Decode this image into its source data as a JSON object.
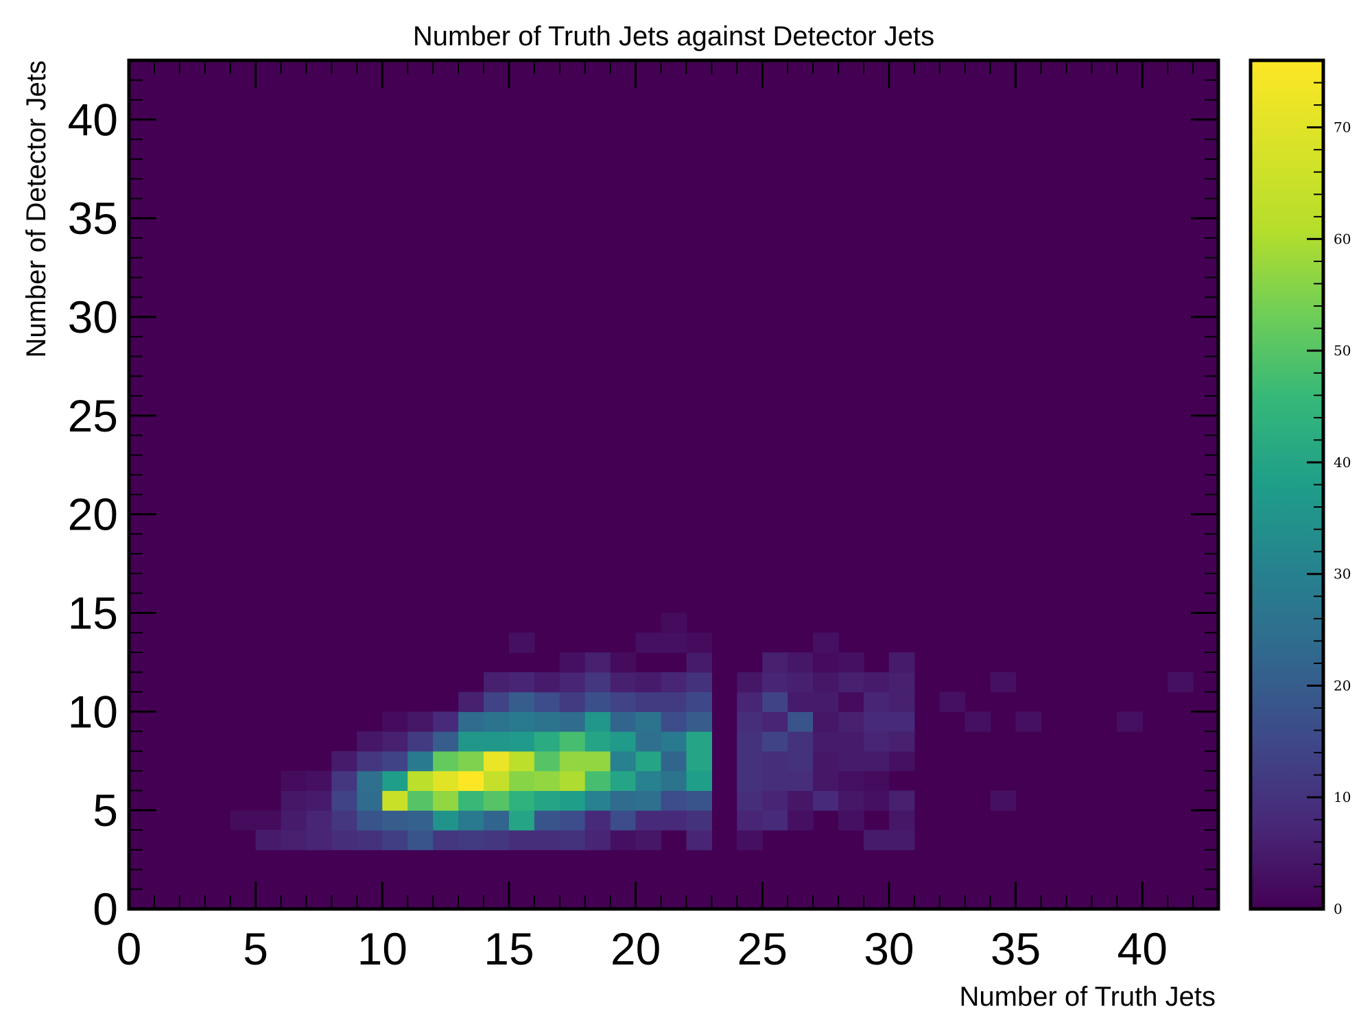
{
  "chart_data": {
    "type": "heatmap",
    "title": "Number of Truth Jets against Detector Jets",
    "xlabel": "Number of Truth Jets",
    "ylabel": "Number of Detector Jets",
    "xlim": [
      0,
      43
    ],
    "ylim": [
      0,
      43
    ],
    "xticks": [
      "0",
      "5",
      "10",
      "15",
      "20",
      "25",
      "30",
      "35",
      "40"
    ],
    "yticks": [
      "0",
      "5",
      "10",
      "15",
      "20",
      "25",
      "30",
      "35",
      "40"
    ],
    "colorbar": {
      "colormap": "viridis",
      "range": [
        0,
        76
      ],
      "ticks": [
        "0",
        "10",
        "20",
        "30",
        "40",
        "50",
        "60",
        "70"
      ]
    },
    "background_value": 0,
    "bin_size": 1,
    "colors": {
      "c0": "#440154",
      "c10": "#482878",
      "c20": "#3e4989",
      "c30": "#31688e",
      "c40": "#26828e",
      "c50": "#1f9e89",
      "c60": "#35b779",
      "c70": "#6ece58",
      "c80": "#b5de2b",
      "c100": "#fde725"
    },
    "cells": [
      {
        "x": 4,
        "y": 4,
        "v": 2
      },
      {
        "x": 5,
        "y": 4,
        "v": 2
      },
      {
        "x": 5,
        "y": 3,
        "v": 5
      },
      {
        "x": 6,
        "y": 3,
        "v": 6
      },
      {
        "x": 6,
        "y": 4,
        "v": 5
      },
      {
        "x": 6,
        "y": 5,
        "v": 4
      },
      {
        "x": 6,
        "y": 6,
        "v": 2
      },
      {
        "x": 7,
        "y": 3,
        "v": 7
      },
      {
        "x": 7,
        "y": 4,
        "v": 7
      },
      {
        "x": 7,
        "y": 5,
        "v": 5
      },
      {
        "x": 7,
        "y": 6,
        "v": 3
      },
      {
        "x": 8,
        "y": 3,
        "v": 9
      },
      {
        "x": 8,
        "y": 4,
        "v": 11
      },
      {
        "x": 8,
        "y": 5,
        "v": 14
      },
      {
        "x": 8,
        "y": 6,
        "v": 11
      },
      {
        "x": 8,
        "y": 7,
        "v": 5
      },
      {
        "x": 9,
        "y": 3,
        "v": 10
      },
      {
        "x": 9,
        "y": 4,
        "v": 18
      },
      {
        "x": 9,
        "y": 5,
        "v": 24
      },
      {
        "x": 9,
        "y": 6,
        "v": 25
      },
      {
        "x": 9,
        "y": 7,
        "v": 11
      },
      {
        "x": 9,
        "y": 8,
        "v": 4
      },
      {
        "x": 10,
        "y": 3,
        "v": 13
      },
      {
        "x": 10,
        "y": 4,
        "v": 20
      },
      {
        "x": 10,
        "y": 5,
        "v": 65
      },
      {
        "x": 10,
        "y": 6,
        "v": 38
      },
      {
        "x": 10,
        "y": 7,
        "v": 14
      },
      {
        "x": 10,
        "y": 8,
        "v": 6
      },
      {
        "x": 10,
        "y": 9,
        "v": 2
      },
      {
        "x": 11,
        "y": 3,
        "v": 18
      },
      {
        "x": 11,
        "y": 4,
        "v": 21
      },
      {
        "x": 11,
        "y": 5,
        "v": 50
      },
      {
        "x": 11,
        "y": 6,
        "v": 62
      },
      {
        "x": 11,
        "y": 7,
        "v": 28
      },
      {
        "x": 11,
        "y": 8,
        "v": 12
      },
      {
        "x": 11,
        "y": 9,
        "v": 4
      },
      {
        "x": 12,
        "y": 3,
        "v": 11
      },
      {
        "x": 12,
        "y": 4,
        "v": 35
      },
      {
        "x": 12,
        "y": 5,
        "v": 57
      },
      {
        "x": 12,
        "y": 6,
        "v": 70
      },
      {
        "x": 12,
        "y": 7,
        "v": 52
      },
      {
        "x": 12,
        "y": 8,
        "v": 20
      },
      {
        "x": 12,
        "y": 9,
        "v": 8
      },
      {
        "x": 13,
        "y": 3,
        "v": 12
      },
      {
        "x": 13,
        "y": 4,
        "v": 28
      },
      {
        "x": 13,
        "y": 5,
        "v": 46
      },
      {
        "x": 13,
        "y": 6,
        "v": 76
      },
      {
        "x": 13,
        "y": 7,
        "v": 55
      },
      {
        "x": 13,
        "y": 8,
        "v": 36
      },
      {
        "x": 13,
        "y": 9,
        "v": 24
      },
      {
        "x": 13,
        "y": 10,
        "v": 6
      },
      {
        "x": 14,
        "y": 3,
        "v": 11
      },
      {
        "x": 14,
        "y": 4,
        "v": 22
      },
      {
        "x": 14,
        "y": 5,
        "v": 50
      },
      {
        "x": 14,
        "y": 6,
        "v": 64
      },
      {
        "x": 14,
        "y": 7,
        "v": 72
      },
      {
        "x": 14,
        "y": 8,
        "v": 36
      },
      {
        "x": 14,
        "y": 9,
        "v": 26
      },
      {
        "x": 14,
        "y": 10,
        "v": 14
      },
      {
        "x": 14,
        "y": 11,
        "v": 6
      },
      {
        "x": 15,
        "y": 3,
        "v": 9
      },
      {
        "x": 15,
        "y": 4,
        "v": 40
      },
      {
        "x": 15,
        "y": 5,
        "v": 44
      },
      {
        "x": 15,
        "y": 6,
        "v": 56
      },
      {
        "x": 15,
        "y": 7,
        "v": 62
      },
      {
        "x": 15,
        "y": 8,
        "v": 37
      },
      {
        "x": 15,
        "y": 9,
        "v": 28
      },
      {
        "x": 15,
        "y": 10,
        "v": 20
      },
      {
        "x": 15,
        "y": 11,
        "v": 7
      },
      {
        "x": 15,
        "y": 13,
        "v": 3
      },
      {
        "x": 16,
        "y": 3,
        "v": 9
      },
      {
        "x": 16,
        "y": 4,
        "v": 18
      },
      {
        "x": 16,
        "y": 5,
        "v": 40
      },
      {
        "x": 16,
        "y": 6,
        "v": 57
      },
      {
        "x": 16,
        "y": 7,
        "v": 50
      },
      {
        "x": 16,
        "y": 8,
        "v": 42
      },
      {
        "x": 16,
        "y": 9,
        "v": 26
      },
      {
        "x": 16,
        "y": 10,
        "v": 16
      },
      {
        "x": 16,
        "y": 11,
        "v": 5
      },
      {
        "x": 17,
        "y": 3,
        "v": 10
      },
      {
        "x": 17,
        "y": 4,
        "v": 16
      },
      {
        "x": 17,
        "y": 5,
        "v": 38
      },
      {
        "x": 17,
        "y": 6,
        "v": 60
      },
      {
        "x": 17,
        "y": 7,
        "v": 57
      },
      {
        "x": 17,
        "y": 8,
        "v": 48
      },
      {
        "x": 17,
        "y": 9,
        "v": 24
      },
      {
        "x": 17,
        "y": 10,
        "v": 12
      },
      {
        "x": 17,
        "y": 11,
        "v": 7
      },
      {
        "x": 17,
        "y": 12,
        "v": 3
      },
      {
        "x": 18,
        "y": 3,
        "v": 7
      },
      {
        "x": 18,
        "y": 4,
        "v": 8
      },
      {
        "x": 18,
        "y": 5,
        "v": 30
      },
      {
        "x": 18,
        "y": 6,
        "v": 48
      },
      {
        "x": 18,
        "y": 7,
        "v": 57
      },
      {
        "x": 18,
        "y": 8,
        "v": 40
      },
      {
        "x": 18,
        "y": 9,
        "v": 36
      },
      {
        "x": 18,
        "y": 10,
        "v": 17
      },
      {
        "x": 18,
        "y": 11,
        "v": 11
      },
      {
        "x": 18,
        "y": 12,
        "v": 6
      },
      {
        "x": 19,
        "y": 3,
        "v": 3
      },
      {
        "x": 19,
        "y": 4,
        "v": 16
      },
      {
        "x": 19,
        "y": 5,
        "v": 24
      },
      {
        "x": 19,
        "y": 6,
        "v": 40
      },
      {
        "x": 19,
        "y": 7,
        "v": 30
      },
      {
        "x": 19,
        "y": 8,
        "v": 37
      },
      {
        "x": 19,
        "y": 9,
        "v": 22
      },
      {
        "x": 19,
        "y": 10,
        "v": 14
      },
      {
        "x": 19,
        "y": 11,
        "v": 6
      },
      {
        "x": 19,
        "y": 12,
        "v": 2
      },
      {
        "x": 20,
        "y": 3,
        "v": 4
      },
      {
        "x": 20,
        "y": 4,
        "v": 8
      },
      {
        "x": 20,
        "y": 5,
        "v": 25
      },
      {
        "x": 20,
        "y": 6,
        "v": 30
      },
      {
        "x": 20,
        "y": 7,
        "v": 40
      },
      {
        "x": 20,
        "y": 8,
        "v": 25
      },
      {
        "x": 20,
        "y": 9,
        "v": 26
      },
      {
        "x": 20,
        "y": 10,
        "v": 12
      },
      {
        "x": 20,
        "y": 11,
        "v": 5
      },
      {
        "x": 20,
        "y": 13,
        "v": 3
      },
      {
        "x": 21,
        "y": 4,
        "v": 8
      },
      {
        "x": 21,
        "y": 5,
        "v": 16
      },
      {
        "x": 21,
        "y": 6,
        "v": 26
      },
      {
        "x": 21,
        "y": 7,
        "v": 22
      },
      {
        "x": 21,
        "y": 8,
        "v": 28
      },
      {
        "x": 21,
        "y": 9,
        "v": 16
      },
      {
        "x": 21,
        "y": 10,
        "v": 12
      },
      {
        "x": 21,
        "y": 11,
        "v": 7
      },
      {
        "x": 21,
        "y": 13,
        "v": 3
      },
      {
        "x": 21,
        "y": 14,
        "v": 2
      },
      {
        "x": 22,
        "y": 3,
        "v": 7
      },
      {
        "x": 22,
        "y": 4,
        "v": 10
      },
      {
        "x": 22,
        "y": 5,
        "v": 18
      },
      {
        "x": 22,
        "y": 6,
        "v": 38
      },
      {
        "x": 22,
        "y": 7,
        "v": 40
      },
      {
        "x": 22,
        "y": 8,
        "v": 40
      },
      {
        "x": 22,
        "y": 9,
        "v": 20
      },
      {
        "x": 22,
        "y": 10,
        "v": 15
      },
      {
        "x": 22,
        "y": 11,
        "v": 10
      },
      {
        "x": 22,
        "y": 12,
        "v": 5
      },
      {
        "x": 22,
        "y": 13,
        "v": 2
      },
      {
        "x": 24,
        "y": 3,
        "v": 3
      },
      {
        "x": 24,
        "y": 4,
        "v": 7
      },
      {
        "x": 24,
        "y": 5,
        "v": 9
      },
      {
        "x": 24,
        "y": 6,
        "v": 10
      },
      {
        "x": 24,
        "y": 7,
        "v": 10
      },
      {
        "x": 24,
        "y": 8,
        "v": 10
      },
      {
        "x": 24,
        "y": 9,
        "v": 9
      },
      {
        "x": 24,
        "y": 10,
        "v": 7
      },
      {
        "x": 24,
        "y": 11,
        "v": 4
      },
      {
        "x": 25,
        "y": 4,
        "v": 8
      },
      {
        "x": 25,
        "y": 5,
        "v": 7
      },
      {
        "x": 25,
        "y": 6,
        "v": 9
      },
      {
        "x": 25,
        "y": 7,
        "v": 9
      },
      {
        "x": 25,
        "y": 8,
        "v": 14
      },
      {
        "x": 25,
        "y": 9,
        "v": 7
      },
      {
        "x": 25,
        "y": 10,
        "v": 14
      },
      {
        "x": 25,
        "y": 11,
        "v": 7
      },
      {
        "x": 25,
        "y": 12,
        "v": 6
      },
      {
        "x": 26,
        "y": 4,
        "v": 3
      },
      {
        "x": 26,
        "y": 5,
        "v": 4
      },
      {
        "x": 26,
        "y": 6,
        "v": 9
      },
      {
        "x": 26,
        "y": 7,
        "v": 10
      },
      {
        "x": 26,
        "y": 8,
        "v": 10
      },
      {
        "x": 26,
        "y": 9,
        "v": 18
      },
      {
        "x": 26,
        "y": 10,
        "v": 5
      },
      {
        "x": 26,
        "y": 11,
        "v": 6
      },
      {
        "x": 26,
        "y": 12,
        "v": 4
      },
      {
        "x": 27,
        "y": 5,
        "v": 8
      },
      {
        "x": 27,
        "y": 6,
        "v": 4
      },
      {
        "x": 27,
        "y": 7,
        "v": 4
      },
      {
        "x": 27,
        "y": 8,
        "v": 5
      },
      {
        "x": 27,
        "y": 9,
        "v": 4
      },
      {
        "x": 27,
        "y": 10,
        "v": 5
      },
      {
        "x": 27,
        "y": 11,
        "v": 4
      },
      {
        "x": 27,
        "y": 12,
        "v": 2
      },
      {
        "x": 27,
        "y": 13,
        "v": 3
      },
      {
        "x": 28,
        "y": 4,
        "v": 3
      },
      {
        "x": 28,
        "y": 5,
        "v": 4
      },
      {
        "x": 28,
        "y": 6,
        "v": 3
      },
      {
        "x": 28,
        "y": 7,
        "v": 5
      },
      {
        "x": 28,
        "y": 8,
        "v": 5
      },
      {
        "x": 28,
        "y": 9,
        "v": 6
      },
      {
        "x": 28,
        "y": 10,
        "v": 2
      },
      {
        "x": 28,
        "y": 11,
        "v": 6
      },
      {
        "x": 28,
        "y": 12,
        "v": 3
      },
      {
        "x": 29,
        "y": 3,
        "v": 5
      },
      {
        "x": 29,
        "y": 5,
        "v": 3
      },
      {
        "x": 29,
        "y": 6,
        "v": 2
      },
      {
        "x": 29,
        "y": 7,
        "v": 5
      },
      {
        "x": 29,
        "y": 8,
        "v": 7
      },
      {
        "x": 29,
        "y": 9,
        "v": 8
      },
      {
        "x": 29,
        "y": 10,
        "v": 7
      },
      {
        "x": 29,
        "y": 11,
        "v": 5
      },
      {
        "x": 30,
        "y": 3,
        "v": 5
      },
      {
        "x": 30,
        "y": 4,
        "v": 4
      },
      {
        "x": 30,
        "y": 5,
        "v": 6
      },
      {
        "x": 30,
        "y": 7,
        "v": 3
      },
      {
        "x": 30,
        "y": 8,
        "v": 6
      },
      {
        "x": 30,
        "y": 9,
        "v": 8
      },
      {
        "x": 30,
        "y": 10,
        "v": 6
      },
      {
        "x": 30,
        "y": 11,
        "v": 6
      },
      {
        "x": 30,
        "y": 12,
        "v": 5
      },
      {
        "x": 32,
        "y": 10,
        "v": 3
      },
      {
        "x": 33,
        "y": 9,
        "v": 3
      },
      {
        "x": 34,
        "y": 5,
        "v": 3
      },
      {
        "x": 34,
        "y": 11,
        "v": 3
      },
      {
        "x": 35,
        "y": 9,
        "v": 3
      },
      {
        "x": 39,
        "y": 9,
        "v": 3
      },
      {
        "x": 41,
        "y": 11,
        "v": 3
      }
    ]
  }
}
